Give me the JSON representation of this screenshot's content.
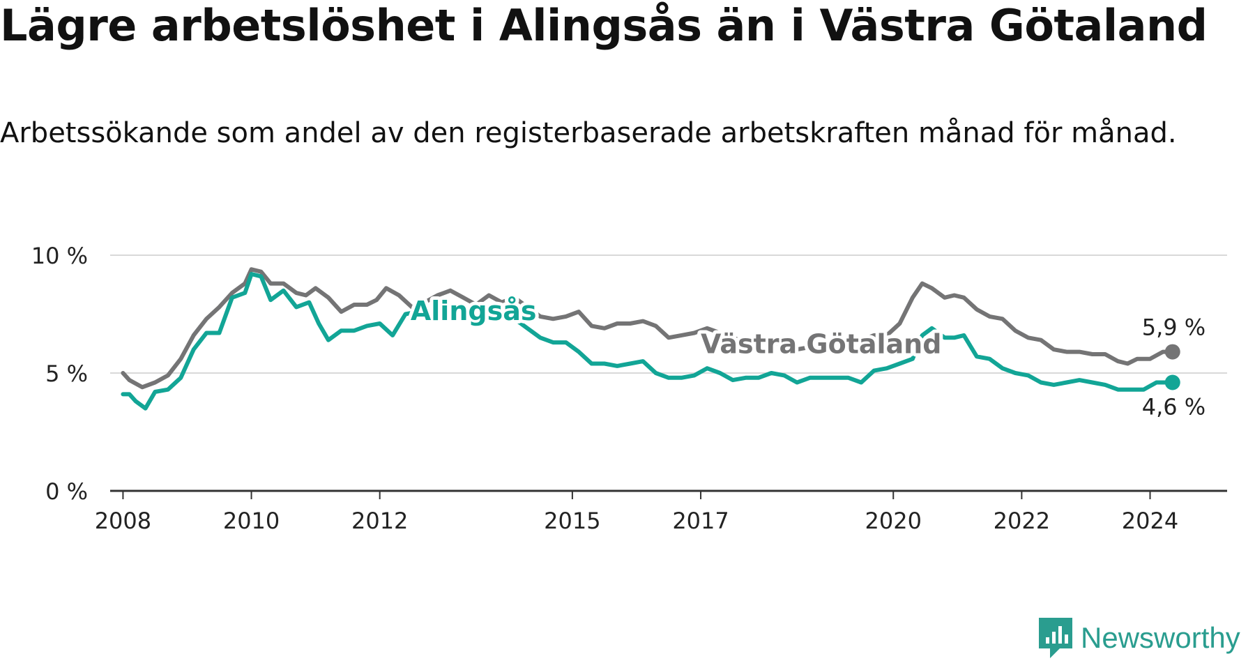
{
  "title": "Lägre arbetslöshet i Alingsås än i Västra Götaland",
  "subtitle": "Arbetssökande som andel av den registerbaserade arbetskraften månad för månad.",
  "brand": "Newsworthy",
  "colors": {
    "alingsas": "#12a596",
    "vastra": "#747475",
    "grid": "#d9d9d9",
    "axis": "#333333"
  },
  "chart_data": {
    "type": "line",
    "title": "Lägre arbetslöshet i Alingsås än i Västra Götaland",
    "ylabel": "",
    "xlabel": "",
    "ylim": [
      0,
      10
    ],
    "xlim": [
      2007.8,
      2025.2
    ],
    "y_ticks": [
      {
        "value": 0,
        "label": "0 %"
      },
      {
        "value": 5,
        "label": "5 %"
      },
      {
        "value": 10,
        "label": "10 %"
      }
    ],
    "x_ticks": [
      {
        "value": 2008,
        "label": "2008"
      },
      {
        "value": 2010,
        "label": "2010"
      },
      {
        "value": 2012,
        "label": "2012"
      },
      {
        "value": 2015,
        "label": "2015"
      },
      {
        "value": 2017,
        "label": "2017"
      },
      {
        "value": 2020,
        "label": "2020"
      },
      {
        "value": 2022,
        "label": "2022"
      },
      {
        "value": 2024,
        "label": "2024"
      }
    ],
    "series": [
      {
        "name": "Västra Götaland",
        "label": "Västra Götaland",
        "end_label": "5,9 %",
        "points": [
          [
            2008.0,
            5.0
          ],
          [
            2008.1,
            4.7
          ],
          [
            2008.3,
            4.4
          ],
          [
            2008.5,
            4.6
          ],
          [
            2008.7,
            4.9
          ],
          [
            2008.9,
            5.6
          ],
          [
            2009.1,
            6.6
          ],
          [
            2009.3,
            7.3
          ],
          [
            2009.5,
            7.8
          ],
          [
            2009.7,
            8.4
          ],
          [
            2009.9,
            8.8
          ],
          [
            2010.0,
            9.4
          ],
          [
            2010.15,
            9.3
          ],
          [
            2010.3,
            8.8
          ],
          [
            2010.5,
            8.8
          ],
          [
            2010.7,
            8.4
          ],
          [
            2010.85,
            8.3
          ],
          [
            2011.0,
            8.6
          ],
          [
            2011.2,
            8.2
          ],
          [
            2011.4,
            7.6
          ],
          [
            2011.6,
            7.9
          ],
          [
            2011.8,
            7.9
          ],
          [
            2011.95,
            8.1
          ],
          [
            2012.1,
            8.6
          ],
          [
            2012.3,
            8.3
          ],
          [
            2012.5,
            7.8
          ],
          [
            2012.7,
            8.0
          ],
          [
            2012.9,
            8.3
          ],
          [
            2013.1,
            8.5
          ],
          [
            2013.3,
            8.2
          ],
          [
            2013.5,
            7.9
          ],
          [
            2013.7,
            8.3
          ],
          [
            2013.9,
            8.0
          ],
          [
            2014.1,
            8.2
          ],
          [
            2014.3,
            7.8
          ],
          [
            2014.5,
            7.4
          ],
          [
            2014.7,
            7.3
          ],
          [
            2014.9,
            7.4
          ],
          [
            2015.1,
            7.6
          ],
          [
            2015.3,
            7.0
          ],
          [
            2015.5,
            6.9
          ],
          [
            2015.7,
            7.1
          ],
          [
            2015.9,
            7.1
          ],
          [
            2016.1,
            7.2
          ],
          [
            2016.3,
            7.0
          ],
          [
            2016.5,
            6.5
          ],
          [
            2016.7,
            6.6
          ],
          [
            2016.9,
            6.7
          ],
          [
            2017.1,
            6.9
          ],
          [
            2017.3,
            6.7
          ],
          [
            2017.5,
            6.5
          ],
          [
            2017.7,
            6.3
          ],
          [
            2017.9,
            6.4
          ],
          [
            2018.1,
            6.3
          ],
          [
            2018.3,
            6.2
          ],
          [
            2018.5,
            6.0
          ],
          [
            2018.7,
            6.1
          ],
          [
            2018.9,
            6.0
          ],
          [
            2019.1,
            6.2
          ],
          [
            2019.3,
            6.3
          ],
          [
            2019.5,
            6.4
          ],
          [
            2019.7,
            6.6
          ],
          [
            2019.9,
            6.6
          ],
          [
            2020.1,
            7.1
          ],
          [
            2020.3,
            8.2
          ],
          [
            2020.45,
            8.8
          ],
          [
            2020.6,
            8.6
          ],
          [
            2020.8,
            8.2
          ],
          [
            2020.95,
            8.3
          ],
          [
            2021.1,
            8.2
          ],
          [
            2021.3,
            7.7
          ],
          [
            2021.5,
            7.4
          ],
          [
            2021.7,
            7.3
          ],
          [
            2021.9,
            6.8
          ],
          [
            2022.1,
            6.5
          ],
          [
            2022.3,
            6.4
          ],
          [
            2022.5,
            6.0
          ],
          [
            2022.7,
            5.9
          ],
          [
            2022.9,
            5.9
          ],
          [
            2023.1,
            5.8
          ],
          [
            2023.3,
            5.8
          ],
          [
            2023.5,
            5.5
          ],
          [
            2023.65,
            5.4
          ],
          [
            2023.8,
            5.6
          ],
          [
            2024.0,
            5.6
          ],
          [
            2024.2,
            5.9
          ],
          [
            2024.35,
            5.9
          ]
        ]
      },
      {
        "name": "Alingsås",
        "label": "Alingsås",
        "end_label": "4,6 %",
        "points": [
          [
            2008.0,
            4.1
          ],
          [
            2008.1,
            4.1
          ],
          [
            2008.2,
            3.8
          ],
          [
            2008.35,
            3.5
          ],
          [
            2008.5,
            4.2
          ],
          [
            2008.7,
            4.3
          ],
          [
            2008.9,
            4.8
          ],
          [
            2009.1,
            6.0
          ],
          [
            2009.3,
            6.7
          ],
          [
            2009.5,
            6.7
          ],
          [
            2009.7,
            8.2
          ],
          [
            2009.9,
            8.4
          ],
          [
            2010.0,
            9.2
          ],
          [
            2010.15,
            9.1
          ],
          [
            2010.3,
            8.1
          ],
          [
            2010.5,
            8.5
          ],
          [
            2010.7,
            7.8
          ],
          [
            2010.9,
            8.0
          ],
          [
            2011.05,
            7.1
          ],
          [
            2011.2,
            6.4
          ],
          [
            2011.4,
            6.8
          ],
          [
            2011.6,
            6.8
          ],
          [
            2011.8,
            7.0
          ],
          [
            2012.0,
            7.1
          ],
          [
            2012.2,
            6.6
          ],
          [
            2012.4,
            7.5
          ],
          [
            2012.6,
            7.6
          ],
          [
            2012.8,
            7.7
          ],
          [
            2013.0,
            7.6
          ],
          [
            2013.3,
            7.5
          ],
          [
            2013.6,
            7.4
          ],
          [
            2013.9,
            7.4
          ],
          [
            2014.1,
            7.3
          ],
          [
            2014.3,
            6.9
          ],
          [
            2014.5,
            6.5
          ],
          [
            2014.7,
            6.3
          ],
          [
            2014.9,
            6.3
          ],
          [
            2015.1,
            5.9
          ],
          [
            2015.3,
            5.4
          ],
          [
            2015.5,
            5.4
          ],
          [
            2015.7,
            5.3
          ],
          [
            2015.9,
            5.4
          ],
          [
            2016.1,
            5.5
          ],
          [
            2016.3,
            5.0
          ],
          [
            2016.5,
            4.8
          ],
          [
            2016.7,
            4.8
          ],
          [
            2016.9,
            4.9
          ],
          [
            2017.1,
            5.2
          ],
          [
            2017.3,
            5.0
          ],
          [
            2017.5,
            4.7
          ],
          [
            2017.7,
            4.8
          ],
          [
            2017.9,
            4.8
          ],
          [
            2018.1,
            5.0
          ],
          [
            2018.3,
            4.9
          ],
          [
            2018.5,
            4.6
          ],
          [
            2018.7,
            4.8
          ],
          [
            2018.9,
            4.8
          ],
          [
            2019.1,
            4.8
          ],
          [
            2019.3,
            4.8
          ],
          [
            2019.5,
            4.6
          ],
          [
            2019.7,
            5.1
          ],
          [
            2019.9,
            5.2
          ],
          [
            2020.1,
            5.4
          ],
          [
            2020.3,
            5.6
          ],
          [
            2020.45,
            6.6
          ],
          [
            2020.6,
            6.9
          ],
          [
            2020.8,
            6.5
          ],
          [
            2020.95,
            6.5
          ],
          [
            2021.1,
            6.6
          ],
          [
            2021.3,
            5.7
          ],
          [
            2021.5,
            5.6
          ],
          [
            2021.7,
            5.2
          ],
          [
            2021.9,
            5.0
          ],
          [
            2022.1,
            4.9
          ],
          [
            2022.3,
            4.6
          ],
          [
            2022.5,
            4.5
          ],
          [
            2022.7,
            4.6
          ],
          [
            2022.9,
            4.7
          ],
          [
            2023.1,
            4.6
          ],
          [
            2023.3,
            4.5
          ],
          [
            2023.5,
            4.3
          ],
          [
            2023.7,
            4.3
          ],
          [
            2023.9,
            4.3
          ],
          [
            2024.1,
            4.6
          ],
          [
            2024.35,
            4.6
          ]
        ]
      }
    ]
  }
}
